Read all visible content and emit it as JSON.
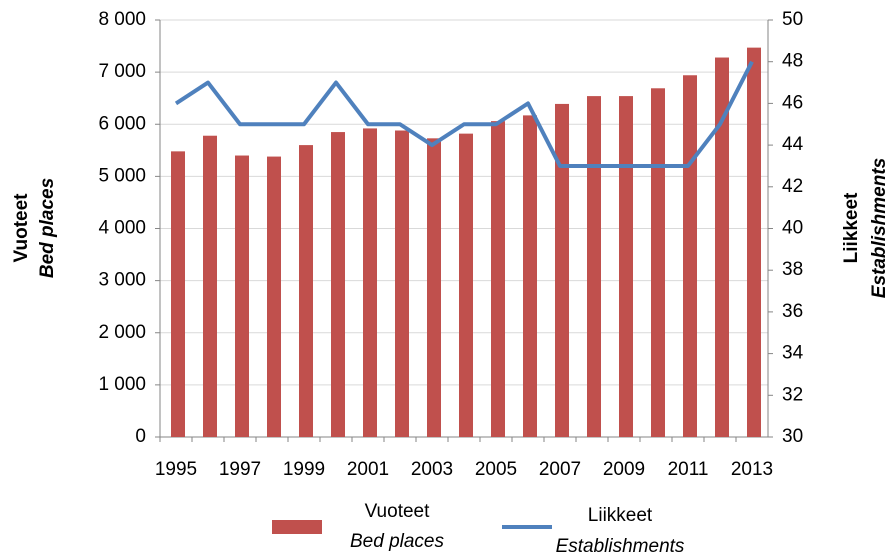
{
  "chart_data": {
    "type": "bar_line",
    "y_title": "Vuoteet",
    "y_subtitle": "Bed places",
    "y2_title": "Liikkeet",
    "y2_subtitle": "Establishments",
    "categories": [
      "1995",
      null,
      "1997",
      null,
      "1999",
      null,
      "2001",
      null,
      "2003",
      null,
      "2005",
      null,
      "2007",
      null,
      "2009",
      null,
      "2011",
      null,
      "2013"
    ],
    "ylim": [
      0,
      8000
    ],
    "yticks": [
      {
        "value": 0,
        "label": "0"
      },
      {
        "value": 1000,
        "label": "1 000"
      },
      {
        "value": 2000,
        "label": "2 000"
      },
      {
        "value": 3000,
        "label": "3 000"
      },
      {
        "value": 4000,
        "label": "4 000"
      },
      {
        "value": 5000,
        "label": "5 000"
      },
      {
        "value": 6000,
        "label": "6 000"
      },
      {
        "value": 7000,
        "label": "7 000"
      },
      {
        "value": 8000,
        "label": "8 000"
      }
    ],
    "y2lim": [
      30,
      50
    ],
    "y2ticks": [
      30,
      32,
      34,
      36,
      38,
      40,
      42,
      44,
      46,
      48,
      50
    ],
    "grid": true,
    "series": [
      {
        "name": "Vuoteet",
        "subname": "Bed places",
        "type": "bar",
        "color": "#c0504d",
        "values": [
          5480,
          5780,
          5400,
          5380,
          5600,
          5850,
          5920,
          5880,
          5730,
          5820,
          6060,
          6170,
          6390,
          6540,
          6540,
          6690,
          6940,
          7280,
          7470
        ]
      },
      {
        "name": "Liikkeet",
        "subname": "Establishments",
        "type": "line",
        "axis": "y2",
        "color": "#4f81bd",
        "values": [
          46,
          47,
          45,
          45,
          45,
          47,
          45,
          45,
          44,
          45,
          45,
          46,
          43,
          43,
          43,
          43,
          43,
          45,
          48
        ]
      }
    ]
  }
}
